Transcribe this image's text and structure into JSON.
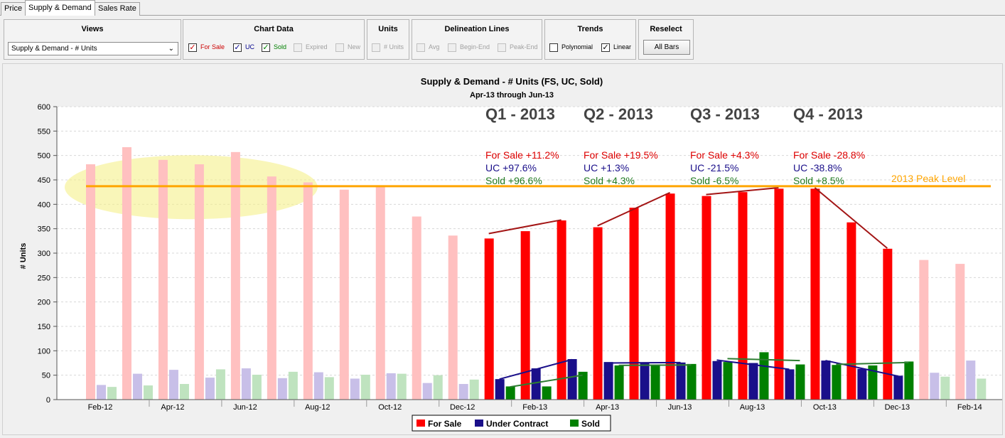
{
  "tabs": [
    {
      "label": "Price",
      "active": false
    },
    {
      "label": "Supply & Demand",
      "active": true
    },
    {
      "label": "Sales Rate",
      "active": false
    }
  ],
  "toolbar": {
    "views": {
      "title": "Views",
      "selected": "Supply & Demand - # Units"
    },
    "chart_data": {
      "title": "Chart Data",
      "items": [
        {
          "label": "For Sale",
          "checked": true,
          "enabled": true,
          "color": "#cc0000"
        },
        {
          "label": "UC",
          "checked": true,
          "enabled": true,
          "color": "#00008b"
        },
        {
          "label": "Sold",
          "checked": true,
          "enabled": true,
          "color": "#008000"
        },
        {
          "label": "Expired",
          "checked": false,
          "enabled": false
        },
        {
          "label": "New",
          "checked": false,
          "enabled": false
        }
      ]
    },
    "units": {
      "title": "Units",
      "items": [
        {
          "label": "# Units",
          "checked": false,
          "enabled": false
        }
      ]
    },
    "delineation": {
      "title": "Delineation Lines",
      "items": [
        {
          "label": "Avg",
          "checked": false,
          "enabled": false
        },
        {
          "label": "Begin-End",
          "checked": false,
          "enabled": false
        },
        {
          "label": "Peak-End",
          "checked": false,
          "enabled": false
        }
      ]
    },
    "trends": {
      "title": "Trends",
      "items": [
        {
          "label": "Polynomial",
          "checked": false,
          "enabled": true
        },
        {
          "label": "Linear",
          "checked": true,
          "enabled": true
        }
      ]
    },
    "reselect": {
      "title": "Reselect",
      "button": "All Bars"
    }
  },
  "chart_data": {
    "type": "bar",
    "title": "Supply & Demand - # Units (FS, UC, Sold)",
    "subtitle": "Apr-13 through Jun-13",
    "ylabel": "# Units",
    "ylim": [
      0,
      600
    ],
    "yticks": [
      0,
      50,
      100,
      150,
      200,
      250,
      300,
      350,
      400,
      450,
      500,
      550,
      600
    ],
    "categories": [
      "Feb-12",
      "Mar-12",
      "Apr-12",
      "May-12",
      "Jun-12",
      "Jul-12",
      "Aug-12",
      "Sep-12",
      "Oct-12",
      "Nov-12",
      "Dec-12",
      "Jan-13",
      "Feb-13",
      "Mar-13",
      "Apr-13",
      "May-13",
      "Jun-13",
      "Jul-13",
      "Aug-13",
      "Sep-13",
      "Oct-13",
      "Nov-13",
      "Dec-13",
      "Jan-14",
      "Feb-14"
    ],
    "x_tick_labels": [
      "Feb-12",
      "Apr-12",
      "Jun-12",
      "Aug-12",
      "Oct-12",
      "Dec-12",
      "Feb-13",
      "Apr-13",
      "Jun-13",
      "Aug-13",
      "Oct-13",
      "Dec-13",
      "Feb-14"
    ],
    "highlighted_range": [
      "Jan-13",
      "Dec-13"
    ],
    "series": [
      {
        "name": "For Sale",
        "color": "#ff0000",
        "faded_color": "#ffc0c0",
        "values": [
          482,
          517,
          491,
          482,
          507,
          457,
          445,
          430,
          437,
          375,
          336,
          330,
          345,
          367,
          353,
          393,
          422,
          417,
          425,
          432,
          432,
          363,
          309,
          286,
          278
        ]
      },
      {
        "name": "Under Contract",
        "color": "#1a0f8a",
        "faded_color": "#c8bfe8",
        "values": [
          30,
          53,
          61,
          45,
          64,
          44,
          56,
          43,
          54,
          34,
          32,
          42,
          64,
          83,
          77,
          75,
          76,
          79,
          75,
          62,
          80,
          63,
          49,
          55,
          80
        ]
      },
      {
        "name": "Sold",
        "color": "#008000",
        "faded_color": "#bfe3bf",
        "values": [
          26,
          29,
          32,
          62,
          51,
          57,
          46,
          51,
          53,
          50,
          41,
          27,
          27,
          57,
          70,
          70,
          73,
          77,
          97,
          72,
          71,
          70,
          78,
          47,
          43
        ]
      }
    ],
    "trend_lines": [
      {
        "series": "For Sale",
        "color": "#a31515",
        "from": [
          "Jan-13",
          340
        ],
        "to": [
          "Mar-13",
          368
        ]
      },
      {
        "series": "Under Contract",
        "color": "#1a0f8a",
        "from": [
          "Jan-13",
          42
        ],
        "to": [
          "Mar-13",
          82
        ]
      },
      {
        "series": "Sold",
        "color": "#2e7d32",
        "from": [
          "Jan-13",
          26
        ],
        "to": [
          "Mar-13",
          50
        ]
      },
      {
        "series": "For Sale",
        "color": "#a31515",
        "from": [
          "Apr-13",
          356
        ],
        "to": [
          "Jun-13",
          424
        ]
      },
      {
        "series": "Under Contract",
        "color": "#1a0f8a",
        "from": [
          "Apr-13",
          75
        ],
        "to": [
          "Jun-13",
          76
        ]
      },
      {
        "series": "Sold",
        "color": "#2e7d32",
        "from": [
          "Apr-13",
          70
        ],
        "to": [
          "Jun-13",
          71
        ]
      },
      {
        "series": "For Sale",
        "color": "#a31515",
        "from": [
          "Jul-13",
          420
        ],
        "to": [
          "Sep-13",
          434
        ]
      },
      {
        "series": "Under Contract",
        "color": "#1a0f8a",
        "from": [
          "Jul-13",
          81
        ],
        "to": [
          "Sep-13",
          62
        ]
      },
      {
        "series": "Sold",
        "color": "#2e7d32",
        "from": [
          "Jul-13",
          84
        ],
        "to": [
          "Sep-13",
          80
        ]
      },
      {
        "series": "For Sale",
        "color": "#a31515",
        "from": [
          "Oct-13",
          434
        ],
        "to": [
          "Dec-13",
          310
        ]
      },
      {
        "series": "Under Contract",
        "color": "#1a0f8a",
        "from": [
          "Oct-13",
          80
        ],
        "to": [
          "Dec-13",
          48
        ]
      },
      {
        "series": "Sold",
        "color": "#2e7d32",
        "from": [
          "Oct-13",
          72
        ],
        "to": [
          "Dec-13",
          76
        ]
      }
    ],
    "peak_line": {
      "value": 437,
      "label": "2013 Peak Level",
      "color": "#ffa500"
    },
    "highlight_ellipse": {
      "range": [
        "Feb-12",
        "Jul-12"
      ],
      "center_value": 435,
      "color": "#f5f08a"
    },
    "quarters": [
      {
        "title": "Q1 - 2013",
        "for_sale": "For Sale +11.2%",
        "uc": "UC +97.6%",
        "sold": "Sold +96.6%"
      },
      {
        "title": "Q2 - 2013",
        "for_sale": "For Sale +19.5%",
        "uc": "UC +1.3%",
        "sold": "Sold +4.3%"
      },
      {
        "title": "Q3 - 2013",
        "for_sale": "For Sale +4.3%",
        "uc": "UC -21.5%",
        "sold": "Sold -6.5%"
      },
      {
        "title": "Q4 - 2013",
        "for_sale": "For Sale -28.8%",
        "uc": "UC -38.8%",
        "sold": "Sold +8.5%"
      }
    ],
    "legend": {
      "position": "bottom-center",
      "items": [
        "For Sale",
        "Under Contract",
        "Sold"
      ]
    },
    "grid": true
  }
}
